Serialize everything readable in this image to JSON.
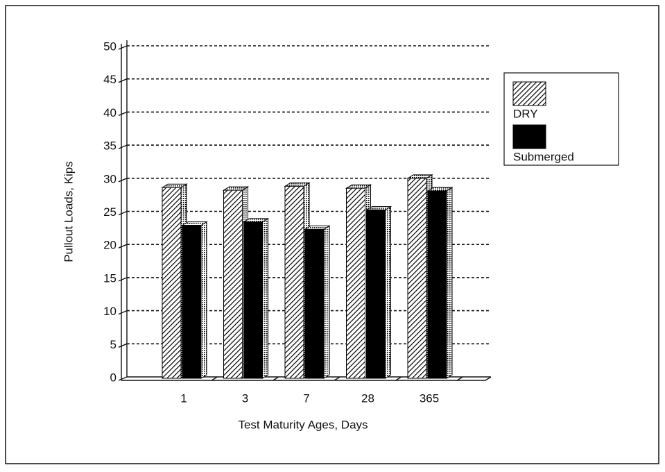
{
  "chart_data": {
    "type": "bar",
    "categories": [
      "1",
      "3",
      "7",
      "28",
      "365"
    ],
    "series": [
      {
        "name": "DRY",
        "color": "#000000",
        "pattern": "hatch",
        "values": [
          28.8,
          28.4,
          29.0,
          28.7,
          30.2
        ]
      },
      {
        "name": "Submerged",
        "color": "#000000",
        "pattern": "solid",
        "values": [
          23.1,
          23.6,
          22.5,
          25.4,
          28.3
        ]
      }
    ],
    "xlabel": "Test Maturity Ages, Days",
    "ylabel": "Pullout Loads,  Kips",
    "ylim": [
      0,
      50
    ],
    "yticks": [
      0,
      5,
      10,
      15,
      20,
      25,
      30,
      35,
      40,
      45,
      50
    ],
    "grid": true,
    "legend": "right"
  }
}
